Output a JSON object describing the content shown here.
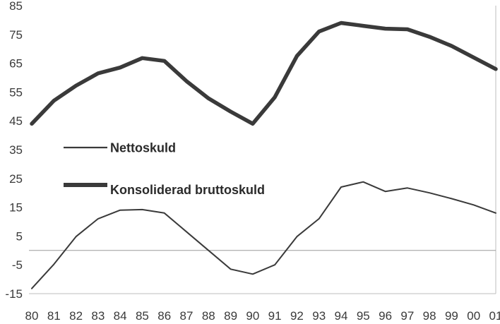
{
  "chart_data": {
    "type": "line",
    "title": "",
    "xlabel": "",
    "ylabel": "",
    "categories": [
      "80",
      "81",
      "82",
      "83",
      "84",
      "85",
      "86",
      "87",
      "88",
      "89",
      "90",
      "91",
      "92",
      "93",
      "94",
      "95",
      "96",
      "97",
      "98",
      "99",
      "00",
      "01"
    ],
    "yticks": [
      85,
      75,
      65,
      55,
      45,
      35,
      25,
      15,
      5,
      -5,
      -15
    ],
    "ylim": [
      -15,
      85
    ],
    "zero_line": true,
    "grid": false,
    "legend_placement": "center-left",
    "series": [
      {
        "name": "Nettoskuld",
        "style": "thin",
        "color": "#3a3a3a",
        "values": [
          -13.2,
          -4.8,
          4.8,
          11.0,
          14.0,
          14.2,
          13.0,
          6.5,
          0.0,
          -6.5,
          -8.2,
          -5.0,
          4.8,
          11.0,
          22.0,
          23.8,
          20.5,
          21.7,
          20.0,
          18.0,
          15.8,
          13.0
        ]
      },
      {
        "name": "Konsoliderad bruttoskuld",
        "style": "thick",
        "color": "#3a3a3a",
        "values": [
          44.0,
          52.0,
          57.2,
          61.5,
          63.5,
          66.8,
          65.8,
          58.8,
          52.8,
          48.2,
          44.0,
          53.2,
          67.5,
          76.0,
          79.0,
          78.0,
          77.0,
          76.8,
          74.2,
          71.0,
          67.0,
          63.0
        ]
      }
    ]
  }
}
